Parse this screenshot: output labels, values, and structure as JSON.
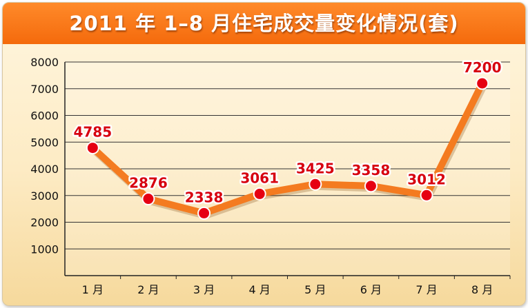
{
  "title": "2011 年 1–8 月住宅成交量变化情况(套)",
  "colors": {
    "title_bg": "#f46a0c",
    "line": "#f47b20",
    "marker": "#e60012",
    "label": "#d7000f",
    "grid": "#333333"
  },
  "chart_data": {
    "type": "line",
    "title": "2011 年 1–8 月住宅成交量变化情况(套)",
    "categories": [
      "1 月",
      "2 月",
      "3 月",
      "4 月",
      "5 月",
      "6 月",
      "7 月",
      "8 月"
    ],
    "series": [
      {
        "values": [
          4785,
          2876,
          2338,
          3061,
          3425,
          3358,
          3012,
          7200
        ]
      }
    ],
    "data_labels": [
      "4785",
      "2876",
      "2338",
      "3061",
      "3425",
      "3358",
      "3012",
      "7200"
    ],
    "y_ticks": [
      "1000",
      "2000",
      "3000",
      "4000",
      "5000",
      "6000",
      "7000",
      "8000"
    ],
    "y_tick_values": [
      1000,
      2000,
      3000,
      4000,
      5000,
      6000,
      7000,
      8000
    ],
    "ylim": [
      0,
      8000
    ],
    "xlabel": "",
    "ylabel": "",
    "grid": true
  }
}
